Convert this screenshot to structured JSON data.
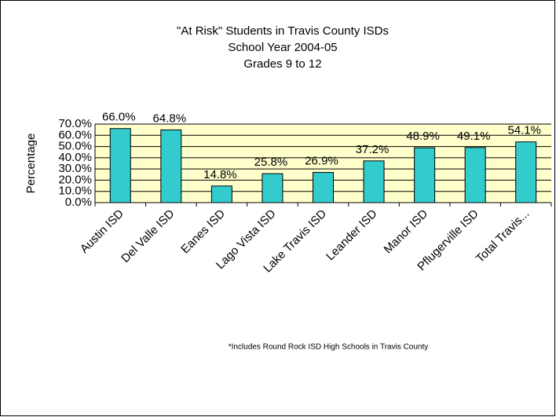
{
  "chart_data": {
    "type": "bar",
    "title": "\"At Risk\" Students in Travis County ISDs",
    "subtitle": [
      "School Year 2004-05",
      "Grades 9 to 12"
    ],
    "y_label": "Percentage",
    "annotation": "*Includes Round Rock ISD High Schools  in Travis County",
    "categories": [
      "Austin ISD",
      "Del Valle ISD",
      "Eanes ISD",
      "Lago Vista ISD",
      "Lake Travis ISD",
      "Leander ISD",
      "Manor ISD",
      "Pflugerville ISD",
      "Total Travis..."
    ],
    "values": [
      66.0,
      64.8,
      14.8,
      25.8,
      26.9,
      37.2,
      48.9,
      49.1,
      54.1
    ],
    "value_labels": [
      "66.0%",
      "64.8%",
      "14.8%",
      "25.8%",
      "26.9%",
      "37.2%",
      "48.9%",
      "49.1%",
      "54.1%"
    ],
    "color": "#33cccc",
    "ylim": [
      0,
      70
    ],
    "yticks": [
      {
        "value": 0,
        "label": "0.0%"
      },
      {
        "value": 10,
        "label": "10.0%"
      },
      {
        "value": 20,
        "label": "20.0%"
      },
      {
        "value": 30,
        "label": "30.0%"
      },
      {
        "value": 40,
        "label": "40.0%"
      },
      {
        "value": 50,
        "label": "50.0%"
      },
      {
        "value": 60,
        "label": "60.0%"
      },
      {
        "value": 70,
        "label": "70.0%"
      }
    ],
    "grid": true
  }
}
